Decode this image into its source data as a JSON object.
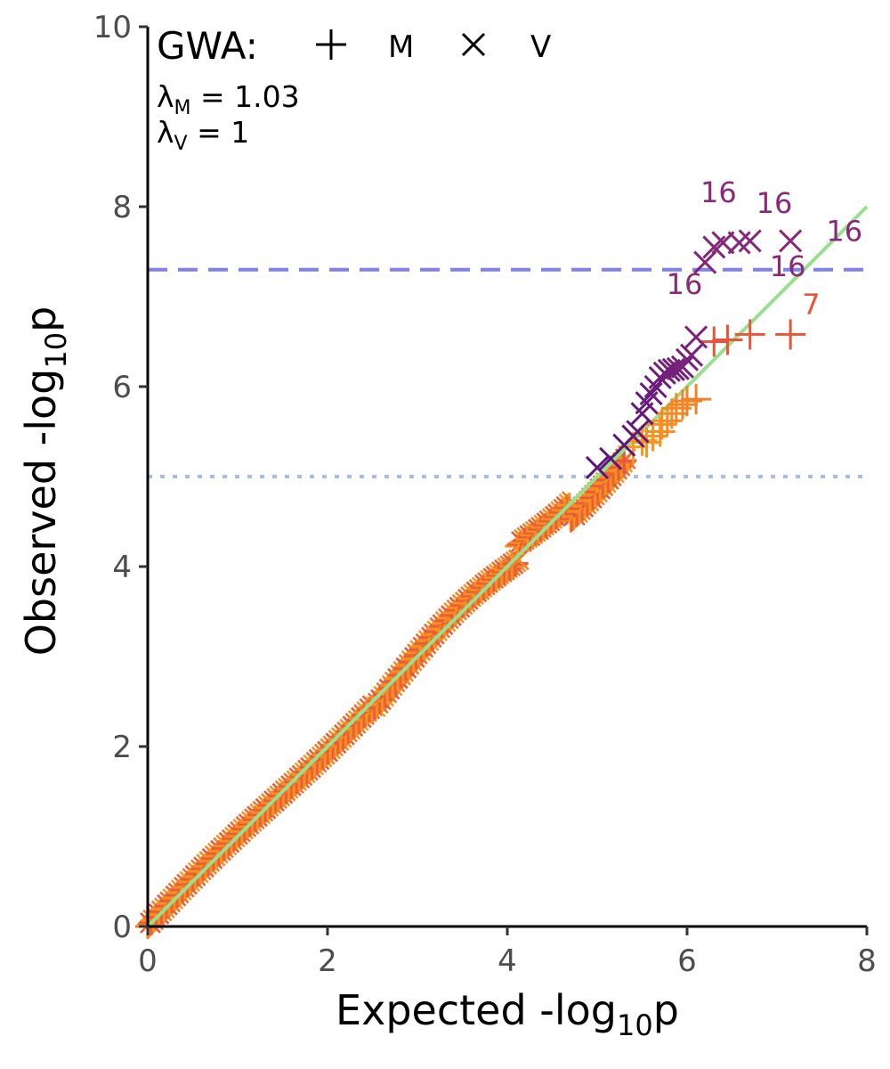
{
  "chart_data": {
    "type": "scatter",
    "title": "",
    "xlabel": "Expected -log",
    "xlabel_sub": "10",
    "xlabel_suffix": "p",
    "ylabel": "Observed -log",
    "ylabel_sub": "10",
    "ylabel_suffix": "p",
    "xlim": [
      0,
      8
    ],
    "ylim": [
      0,
      10
    ],
    "x_ticks": [
      0,
      2,
      4,
      6,
      8
    ],
    "y_ticks": [
      0,
      2,
      4,
      6,
      8,
      10
    ],
    "grid": false,
    "legend": {
      "placement": "top-left",
      "title": "GWA:",
      "entries": [
        {
          "symbol": "plus",
          "label": "M"
        },
        {
          "symbol": "cross",
          "label": "V"
        }
      ]
    },
    "lambdas": [
      {
        "symbol": "λ",
        "sub": "M",
        "text": " = 1.03"
      },
      {
        "symbol": "λ",
        "sub": "V",
        "text": " = 1"
      }
    ],
    "reference_lines": [
      {
        "type": "horizontal",
        "y": 7.3,
        "style": "dashed",
        "color": "#7F7FF2"
      },
      {
        "type": "horizontal",
        "y": 5.0,
        "style": "dotted",
        "color": "#A6BDEB"
      },
      {
        "type": "diagonal",
        "from": [
          0,
          0
        ],
        "to": [
          8,
          8
        ],
        "color": "#98E08F"
      }
    ],
    "series": [
      {
        "marker": "plus",
        "color_scale": [
          "#E8553A",
          "#F99A1C"
        ],
        "bulk": {
          "x_range": [
            0,
            5.3
          ],
          "slope": 0.985
        },
        "points": [
          [
            5.4,
            5.33
          ],
          [
            5.5,
            5.4
          ],
          [
            5.55,
            5.38
          ],
          [
            5.62,
            5.45
          ],
          [
            5.7,
            5.5
          ],
          [
            5.72,
            5.58
          ],
          [
            5.78,
            5.62
          ],
          [
            5.83,
            5.7
          ],
          [
            5.88,
            5.76
          ],
          [
            5.95,
            5.8
          ],
          [
            6.0,
            5.84
          ],
          [
            6.1,
            5.86
          ],
          [
            6.3,
            6.5
          ],
          [
            6.45,
            6.52
          ],
          [
            6.7,
            6.58
          ],
          [
            7.15,
            6.58
          ]
        ]
      },
      {
        "marker": "cross",
        "color_scale": [
          "#5A167E",
          "#8A2978"
        ],
        "bulk_colored_as_series": 0,
        "points": [
          [
            5.0,
            5.1
          ],
          [
            5.15,
            5.2
          ],
          [
            5.3,
            5.35
          ],
          [
            5.4,
            5.45
          ],
          [
            5.45,
            5.5
          ],
          [
            5.5,
            5.7
          ],
          [
            5.55,
            5.82
          ],
          [
            5.6,
            5.92
          ],
          [
            5.65,
            6.0
          ],
          [
            5.7,
            6.1
          ],
          [
            5.75,
            6.15
          ],
          [
            5.8,
            6.18
          ],
          [
            5.85,
            6.19
          ],
          [
            5.9,
            6.2
          ],
          [
            5.95,
            6.22
          ],
          [
            6.0,
            6.3
          ],
          [
            6.05,
            6.35
          ],
          [
            6.1,
            6.55
          ],
          [
            6.2,
            7.38
          ],
          [
            6.3,
            7.55
          ],
          [
            6.4,
            7.6
          ],
          [
            6.58,
            7.6
          ],
          [
            6.7,
            7.62
          ],
          [
            7.15,
            7.62
          ]
        ]
      }
    ],
    "annotations": [
      {
        "text": "16",
        "x": 6.35,
        "y": 8.05,
        "color": "#8A2978"
      },
      {
        "text": "16",
        "x": 6.97,
        "y": 7.93,
        "color": "#8A2978"
      },
      {
        "text": "16",
        "x": 7.75,
        "y": 7.62,
        "color": "#8A2978"
      },
      {
        "text": "16",
        "x": 7.12,
        "y": 7.23,
        "color": "#8A2978"
      },
      {
        "text": "16",
        "x": 5.97,
        "y": 7.03,
        "color": "#8A2978"
      },
      {
        "text": "7",
        "x": 7.38,
        "y": 6.8,
        "color": "#E8553A"
      }
    ]
  }
}
